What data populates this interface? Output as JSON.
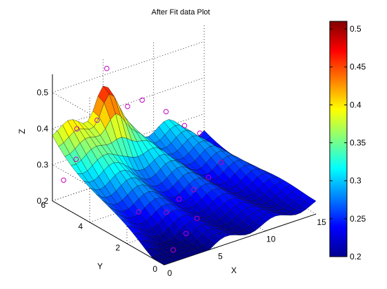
{
  "chart_data": {
    "type": "surface",
    "title": "After Fit data Plot",
    "xlabel": "X",
    "ylabel": "Y",
    "zlabel": "Z",
    "xlim": [
      0,
      15
    ],
    "ylim": [
      0,
      6
    ],
    "zlim": [
      0.2,
      0.55
    ],
    "x_ticks": [
      "0",
      "5",
      "10",
      "15"
    ],
    "y_ticks": [
      "0",
      "2",
      "4",
      "6"
    ],
    "z_ticks": [
      "0.2",
      "0.3",
      "0.4",
      "0.5"
    ],
    "grid": true,
    "colormap": "jet",
    "colorbar": {
      "range": [
        0.2,
        0.51
      ],
      "ticks": [
        "0.2",
        "0.25",
        "0.3",
        "0.35",
        "0.4",
        "0.45",
        "0.5"
      ]
    },
    "marker_color": "#c000c0",
    "data_points": [
      {
        "x": 0.0,
        "y": 5.4,
        "z": 0.275
      },
      {
        "x": 0.5,
        "y": 5.0,
        "z": 0.34
      },
      {
        "x": 1.5,
        "y": 5.5,
        "z": 0.4
      },
      {
        "x": 3.5,
        "y": 5.5,
        "z": 0.405
      },
      {
        "x": 5.0,
        "y": 5.8,
        "z": 0.525
      },
      {
        "x": 6.5,
        "y": 5.5,
        "z": 0.415
      },
      {
        "x": 8.5,
        "y": 5.8,
        "z": 0.405
      },
      {
        "x": 10.5,
        "y": 5.6,
        "z": 0.36
      },
      {
        "x": 12.5,
        "y": 5.7,
        "z": 0.3
      },
      {
        "x": 14.2,
        "y": 5.8,
        "z": 0.26
      },
      {
        "x": 3.0,
        "y": 3.0,
        "z": 0.23
      },
      {
        "x": 5.0,
        "y": 2.6,
        "z": 0.222
      },
      {
        "x": 7.0,
        "y": 3.0,
        "z": 0.228
      },
      {
        "x": 9.0,
        "y": 3.3,
        "z": 0.226
      },
      {
        "x": 11.0,
        "y": 3.6,
        "z": 0.232
      },
      {
        "x": 13.0,
        "y": 4.0,
        "z": 0.244
      },
      {
        "x": 2.0,
        "y": 0.6,
        "z": 0.205
      },
      {
        "x": 4.0,
        "y": 1.0,
        "z": 0.22
      },
      {
        "x": 6.0,
        "y": 1.5,
        "z": 0.228
      }
    ]
  }
}
